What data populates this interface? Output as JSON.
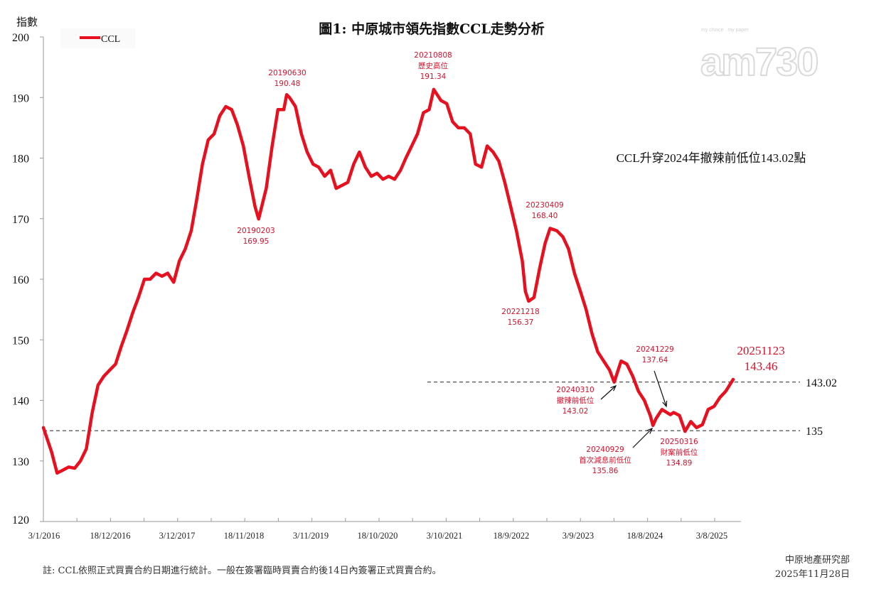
{
  "chart_data": {
    "type": "line",
    "title": "圖1: 中原城市領先指數CCL走勢分析",
    "ylabel": "指數",
    "xlabel": "",
    "ylim": [
      120,
      200
    ],
    "yticks": [
      120,
      130,
      140,
      150,
      160,
      170,
      180,
      190,
      200
    ],
    "xticks": [
      "3/1/2016",
      "18/12/2016",
      "3/12/2017",
      "18/11/2018",
      "3/11/2019",
      "18/10/2020",
      "3/10/2021",
      "18/9/2022",
      "3/9/2023",
      "18/8/2024",
      "3/8/2025"
    ],
    "grid": false,
    "legend": {
      "position": "top-left",
      "entries": [
        "CCL"
      ]
    },
    "series": [
      {
        "name": "CCL",
        "color": "#e8101e",
        "points": [
          [
            "2016-01-03",
            135.5
          ],
          [
            "2016-02-15",
            131.5
          ],
          [
            "2016-03-15",
            128
          ],
          [
            "2016-04-15",
            128.5
          ],
          [
            "2016-05-15",
            129
          ],
          [
            "2016-06-15",
            128.8
          ],
          [
            "2016-07-15",
            130
          ],
          [
            "2016-08-15",
            132
          ],
          [
            "2016-09-15",
            138
          ],
          [
            "2016-10-15",
            142.5
          ],
          [
            "2016-11-15",
            144
          ],
          [
            "2016-12-15",
            145
          ],
          [
            "2017-01-15",
            146
          ],
          [
            "2017-02-15",
            149
          ],
          [
            "2017-03-15",
            151.5
          ],
          [
            "2017-04-15",
            154.5
          ],
          [
            "2017-05-15",
            157
          ],
          [
            "2017-06-15",
            160
          ],
          [
            "2017-07-15",
            160
          ],
          [
            "2017-08-15",
            161
          ],
          [
            "2017-09-15",
            160.5
          ],
          [
            "2017-10-15",
            161
          ],
          [
            "2017-11-15",
            159.5
          ],
          [
            "2017-12-15",
            163
          ],
          [
            "2018-01-15",
            165
          ],
          [
            "2018-02-15",
            168
          ],
          [
            "2018-03-15",
            173
          ],
          [
            "2018-04-15",
            179
          ],
          [
            "2018-05-15",
            183
          ],
          [
            "2018-06-15",
            184
          ],
          [
            "2018-07-15",
            187
          ],
          [
            "2018-08-15",
            188.5
          ],
          [
            "2018-09-15",
            188
          ],
          [
            "2018-10-15",
            185.5
          ],
          [
            "2018-11-15",
            182
          ],
          [
            "2018-12-15",
            177
          ],
          [
            "2019-01-15",
            172
          ],
          [
            "2019-02-03",
            169.95
          ],
          [
            "2019-03-15",
            175
          ],
          [
            "2019-04-15",
            182
          ],
          [
            "2019-05-15",
            188
          ],
          [
            "2019-06-15",
            188
          ],
          [
            "2019-06-30",
            190.48
          ],
          [
            "2019-07-15",
            190
          ],
          [
            "2019-08-15",
            188.5
          ],
          [
            "2019-09-15",
            184
          ],
          [
            "2019-10-15",
            181
          ],
          [
            "2019-11-15",
            179
          ],
          [
            "2019-12-15",
            178.5
          ],
          [
            "2020-01-15",
            177
          ],
          [
            "2020-02-15",
            178
          ],
          [
            "2020-03-15",
            175
          ],
          [
            "2020-04-15",
            175.5
          ],
          [
            "2020-05-15",
            176
          ],
          [
            "2020-06-15",
            179
          ],
          [
            "2020-07-15",
            181
          ],
          [
            "2020-08-15",
            178.5
          ],
          [
            "2020-09-15",
            177
          ],
          [
            "2020-10-15",
            177.5
          ],
          [
            "2020-11-15",
            176.5
          ],
          [
            "2020-12-15",
            177
          ],
          [
            "2021-01-15",
            176.5
          ],
          [
            "2021-02-15",
            178
          ],
          [
            "2021-03-15",
            180
          ],
          [
            "2021-04-15",
            182
          ],
          [
            "2021-05-15",
            184
          ],
          [
            "2021-06-15",
            187.5
          ],
          [
            "2021-07-15",
            188
          ],
          [
            "2021-08-08",
            191.34
          ],
          [
            "2021-09-15",
            189.5
          ],
          [
            "2021-10-15",
            189
          ],
          [
            "2021-11-15",
            186
          ],
          [
            "2021-12-15",
            185
          ],
          [
            "2022-01-15",
            185
          ],
          [
            "2022-02-15",
            184
          ],
          [
            "2022-03-15",
            179
          ],
          [
            "2022-04-15",
            178.5
          ],
          [
            "2022-05-15",
            182
          ],
          [
            "2022-06-15",
            181
          ],
          [
            "2022-07-15",
            179.5
          ],
          [
            "2022-08-15",
            176
          ],
          [
            "2022-09-15",
            172
          ],
          [
            "2022-10-15",
            168
          ],
          [
            "2022-11-15",
            163
          ],
          [
            "2022-12-01",
            158
          ],
          [
            "2022-12-18",
            156.37
          ],
          [
            "2023-01-15",
            157
          ],
          [
            "2023-02-15",
            162
          ],
          [
            "2023-03-15",
            166
          ],
          [
            "2023-04-09",
            168.4
          ],
          [
            "2023-05-15",
            168
          ],
          [
            "2023-06-15",
            167
          ],
          [
            "2023-07-15",
            165
          ],
          [
            "2023-08-15",
            161
          ],
          [
            "2023-09-15",
            158
          ],
          [
            "2023-10-15",
            155
          ],
          [
            "2023-11-15",
            151
          ],
          [
            "2023-12-15",
            148
          ],
          [
            "2024-01-15",
            146.5
          ],
          [
            "2024-02-15",
            145
          ],
          [
            "2024-03-10",
            143.02
          ],
          [
            "2024-04-15",
            146.5
          ],
          [
            "2024-05-15",
            146
          ],
          [
            "2024-06-15",
            144
          ],
          [
            "2024-07-15",
            141.5
          ],
          [
            "2024-08-15",
            140
          ],
          [
            "2024-09-15",
            137.5
          ],
          [
            "2024-09-29",
            135.86
          ],
          [
            "2024-10-15",
            137
          ],
          [
            "2024-11-15",
            138.5
          ],
          [
            "2024-12-29",
            137.64
          ],
          [
            "2025-01-15",
            138
          ],
          [
            "2025-02-15",
            137.5
          ],
          [
            "2025-03-16",
            134.89
          ],
          [
            "2025-04-15",
            136.5
          ],
          [
            "2025-05-15",
            135.5
          ],
          [
            "2025-06-15",
            136
          ],
          [
            "2025-07-15",
            138.5
          ],
          [
            "2025-08-15",
            139
          ],
          [
            "2025-09-15",
            140.5
          ],
          [
            "2025-10-15",
            141.5
          ],
          [
            "2025-11-23",
            143.46
          ]
        ]
      }
    ],
    "reference_lines": [
      {
        "value": 143.02,
        "label": "143.02"
      },
      {
        "value": 135,
        "label": "135"
      }
    ],
    "annotations": [
      {
        "lines": [
          "20190630",
          "190.48"
        ]
      },
      {
        "lines": [
          "20190203",
          "169.95"
        ]
      },
      {
        "lines": [
          "20210808",
          "歷史高位",
          "191.34"
        ]
      },
      {
        "lines": [
          "20230409",
          "168.40"
        ]
      },
      {
        "lines": [
          "20221218",
          "156.37"
        ]
      },
      {
        "lines": [
          "20240310",
          "撤辣前低位",
          "143.02"
        ]
      },
      {
        "lines": [
          "20241229",
          "137.64"
        ]
      },
      {
        "lines": [
          "20240929",
          "首次減息前低位",
          "135.86"
        ]
      },
      {
        "lines": [
          "20250316",
          "財案前低位",
          "134.89"
        ]
      },
      {
        "lines": [
          "20251123",
          "143.46"
        ]
      }
    ],
    "headline": "CCL升穿2024年撤辣前低位143.02點"
  },
  "footnote": "註: CCL依照正式買賣合約日期進行統計。一般在簽署臨時買賣合約後14日內簽署正式買賣合約。",
  "source": "中原地產研究部",
  "date": "2025年11月28日",
  "logo": {
    "text": "am730",
    "tagline": "my choice . my paper"
  }
}
